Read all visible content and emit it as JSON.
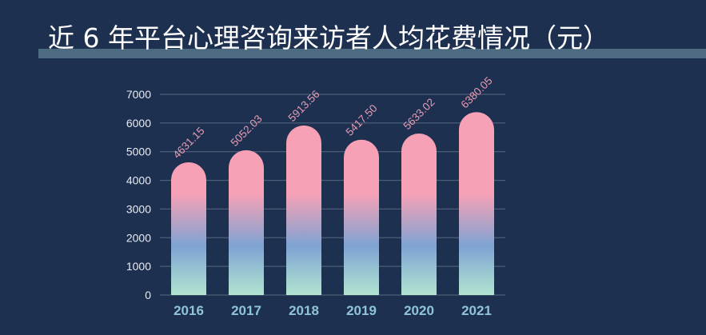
{
  "page": {
    "title": "近 6 年平台心理咨询来访者人均花费情况（元）"
  },
  "colors": {
    "background": "#1e3050",
    "title_bar": "#4c6b80",
    "bar_top": "#f7a1b6",
    "bar_mid": "#7fa3d2",
    "bar_bottom": "#b1e4d1",
    "grid": "#56687f",
    "data_label": "#e79bb4",
    "category_label": "#8fc4d6"
  },
  "chart_data": {
    "type": "bar",
    "categories": [
      "2016",
      "2017",
      "2018",
      "2019",
      "2020",
      "2021"
    ],
    "values": [
      4631.15,
      5052.03,
      5913.56,
      5417.5,
      5633.02,
      6380.05
    ],
    "data_labels": [
      "4631.15",
      "5052.03",
      "5913.56",
      "5417.50",
      "5633.02",
      "6380.05"
    ],
    "yticks": [
      "0",
      "1000",
      "2000",
      "3000",
      "4000",
      "5000",
      "6000",
      "7000"
    ],
    "ylim": [
      0,
      7000
    ],
    "grid": true,
    "legend": "none",
    "bar_style": "rounded-top gradient"
  }
}
